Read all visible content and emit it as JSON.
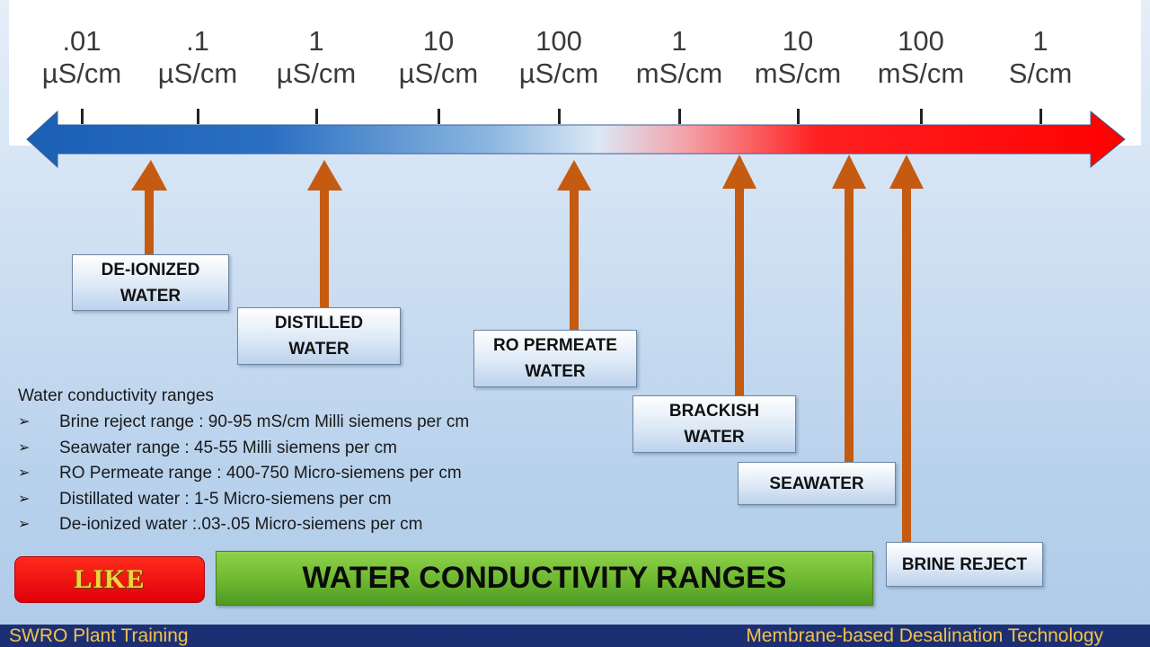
{
  "scale": {
    "ticks": [
      {
        "value": ".01",
        "unit": "µS/cm"
      },
      {
        "value": ".1",
        "unit": "µS/cm"
      },
      {
        "value": "1",
        "unit": "µS/cm"
      },
      {
        "value": "10",
        "unit": "µS/cm"
      },
      {
        "value": "100",
        "unit": "µS/cm"
      },
      {
        "value": "1",
        "unit": "mS/cm"
      },
      {
        "value": "10",
        "unit": "mS/cm"
      },
      {
        "value": "100",
        "unit": "mS/cm"
      },
      {
        "value": "1",
        "unit": "S/cm"
      }
    ],
    "colors": {
      "blue": "#1a5fb4",
      "light": "#dbe8f5",
      "red": "#ff0000"
    }
  },
  "water_types": [
    {
      "id": "deionized",
      "line1": "DE-IONIZED",
      "line2": "WATER"
    },
    {
      "id": "distilled",
      "line1": "DISTILLED",
      "line2": "WATER"
    },
    {
      "id": "ro-permeate",
      "line1": "RO PERMEATE",
      "line2": "WATER"
    },
    {
      "id": "brackish",
      "line1": "BRACKISH",
      "line2": "WATER"
    },
    {
      "id": "seawater",
      "line1": "SEAWATER",
      "line2": ""
    },
    {
      "id": "brine",
      "line1": "BRINE REJECT",
      "line2": ""
    }
  ],
  "pointer_color": "#c55a11",
  "ranges": {
    "title": "Water conductivity ranges",
    "items": [
      "Brine reject range : 90-95 mS/cm Milli siemens per cm",
      "Seawater range : 45-55 Milli siemens per cm",
      "RO Permeate range : 400-750 Micro-siemens per cm",
      "Distillated water : 1-5 Micro-siemens per cm",
      "De-ionized water :.03-.05 Micro-siemens per cm"
    ]
  },
  "like_label": "LIKE",
  "banner_title": "WATER CONDUCTIVITY RANGES",
  "footer": {
    "left": "SWRO Plant Training",
    "right": "Membrane-based Desalination Technology"
  }
}
